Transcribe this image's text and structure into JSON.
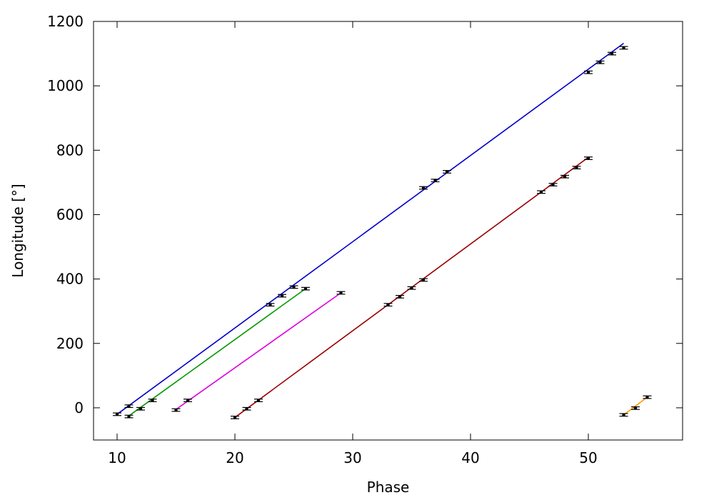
{
  "chart_data": {
    "type": "scatter",
    "title": "",
    "xlabel": "Phase",
    "ylabel": "Longitude [°]",
    "xlim": [
      8,
      58
    ],
    "ylim": [
      -100,
      1200
    ],
    "xticks": [
      10,
      20,
      30,
      40,
      50
    ],
    "yticks": [
      0,
      200,
      400,
      600,
      800,
      1000,
      1200
    ],
    "grid": false,
    "legend": "none",
    "axis_color": "#000000",
    "point_color": "#000000",
    "error_bar_halfwidth_y": 4,
    "series": [
      {
        "color": "#0000cc",
        "fit": {
          "x": [
            10,
            53
          ],
          "y": [
            -20,
            1132
          ]
        },
        "points": [
          {
            "x": 10,
            "y": -20
          },
          {
            "x": 11,
            "y": 5
          },
          {
            "x": 23,
            "y": 320
          },
          {
            "x": 24,
            "y": 348
          },
          {
            "x": 25,
            "y": 375
          },
          {
            "x": 36,
            "y": 683
          },
          {
            "x": 37,
            "y": 706
          },
          {
            "x": 38,
            "y": 733
          },
          {
            "x": 50,
            "y": 1042
          },
          {
            "x": 51,
            "y": 1073
          },
          {
            "x": 52,
            "y": 1100
          },
          {
            "x": 53,
            "y": 1118
          }
        ]
      },
      {
        "color": "#009900",
        "fit": {
          "x": [
            11,
            26
          ],
          "y": [
            -25,
            370
          ]
        },
        "points": [
          {
            "x": 11,
            "y": -27
          },
          {
            "x": 12,
            "y": -3
          },
          {
            "x": 13,
            "y": 23
          },
          {
            "x": 26,
            "y": 370
          }
        ]
      },
      {
        "color": "#dd00dd",
        "fit": {
          "x": [
            15,
            29
          ],
          "y": [
            -5,
            357
          ]
        },
        "points": [
          {
            "x": 15,
            "y": -7
          },
          {
            "x": 16,
            "y": 23
          },
          {
            "x": 29,
            "y": 357
          }
        ]
      },
      {
        "color": "#990000",
        "fit": {
          "x": [
            20,
            50
          ],
          "y": [
            -30,
            778
          ]
        },
        "points": [
          {
            "x": 20,
            "y": -30
          },
          {
            "x": 21,
            "y": -3
          },
          {
            "x": 22,
            "y": 23
          },
          {
            "x": 33,
            "y": 320
          },
          {
            "x": 34,
            "y": 345
          },
          {
            "x": 35,
            "y": 372
          },
          {
            "x": 36,
            "y": 397
          },
          {
            "x": 46,
            "y": 670
          },
          {
            "x": 47,
            "y": 693
          },
          {
            "x": 48,
            "y": 718
          },
          {
            "x": 49,
            "y": 746
          },
          {
            "x": 50,
            "y": 775
          }
        ]
      },
      {
        "color": "#ff9900",
        "fit": {
          "x": [
            53,
            55
          ],
          "y": [
            -22,
            33
          ]
        },
        "points": [
          {
            "x": 53,
            "y": -22
          },
          {
            "x": 54,
            "y": -1
          },
          {
            "x": 55,
            "y": 33
          }
        ]
      }
    ]
  }
}
